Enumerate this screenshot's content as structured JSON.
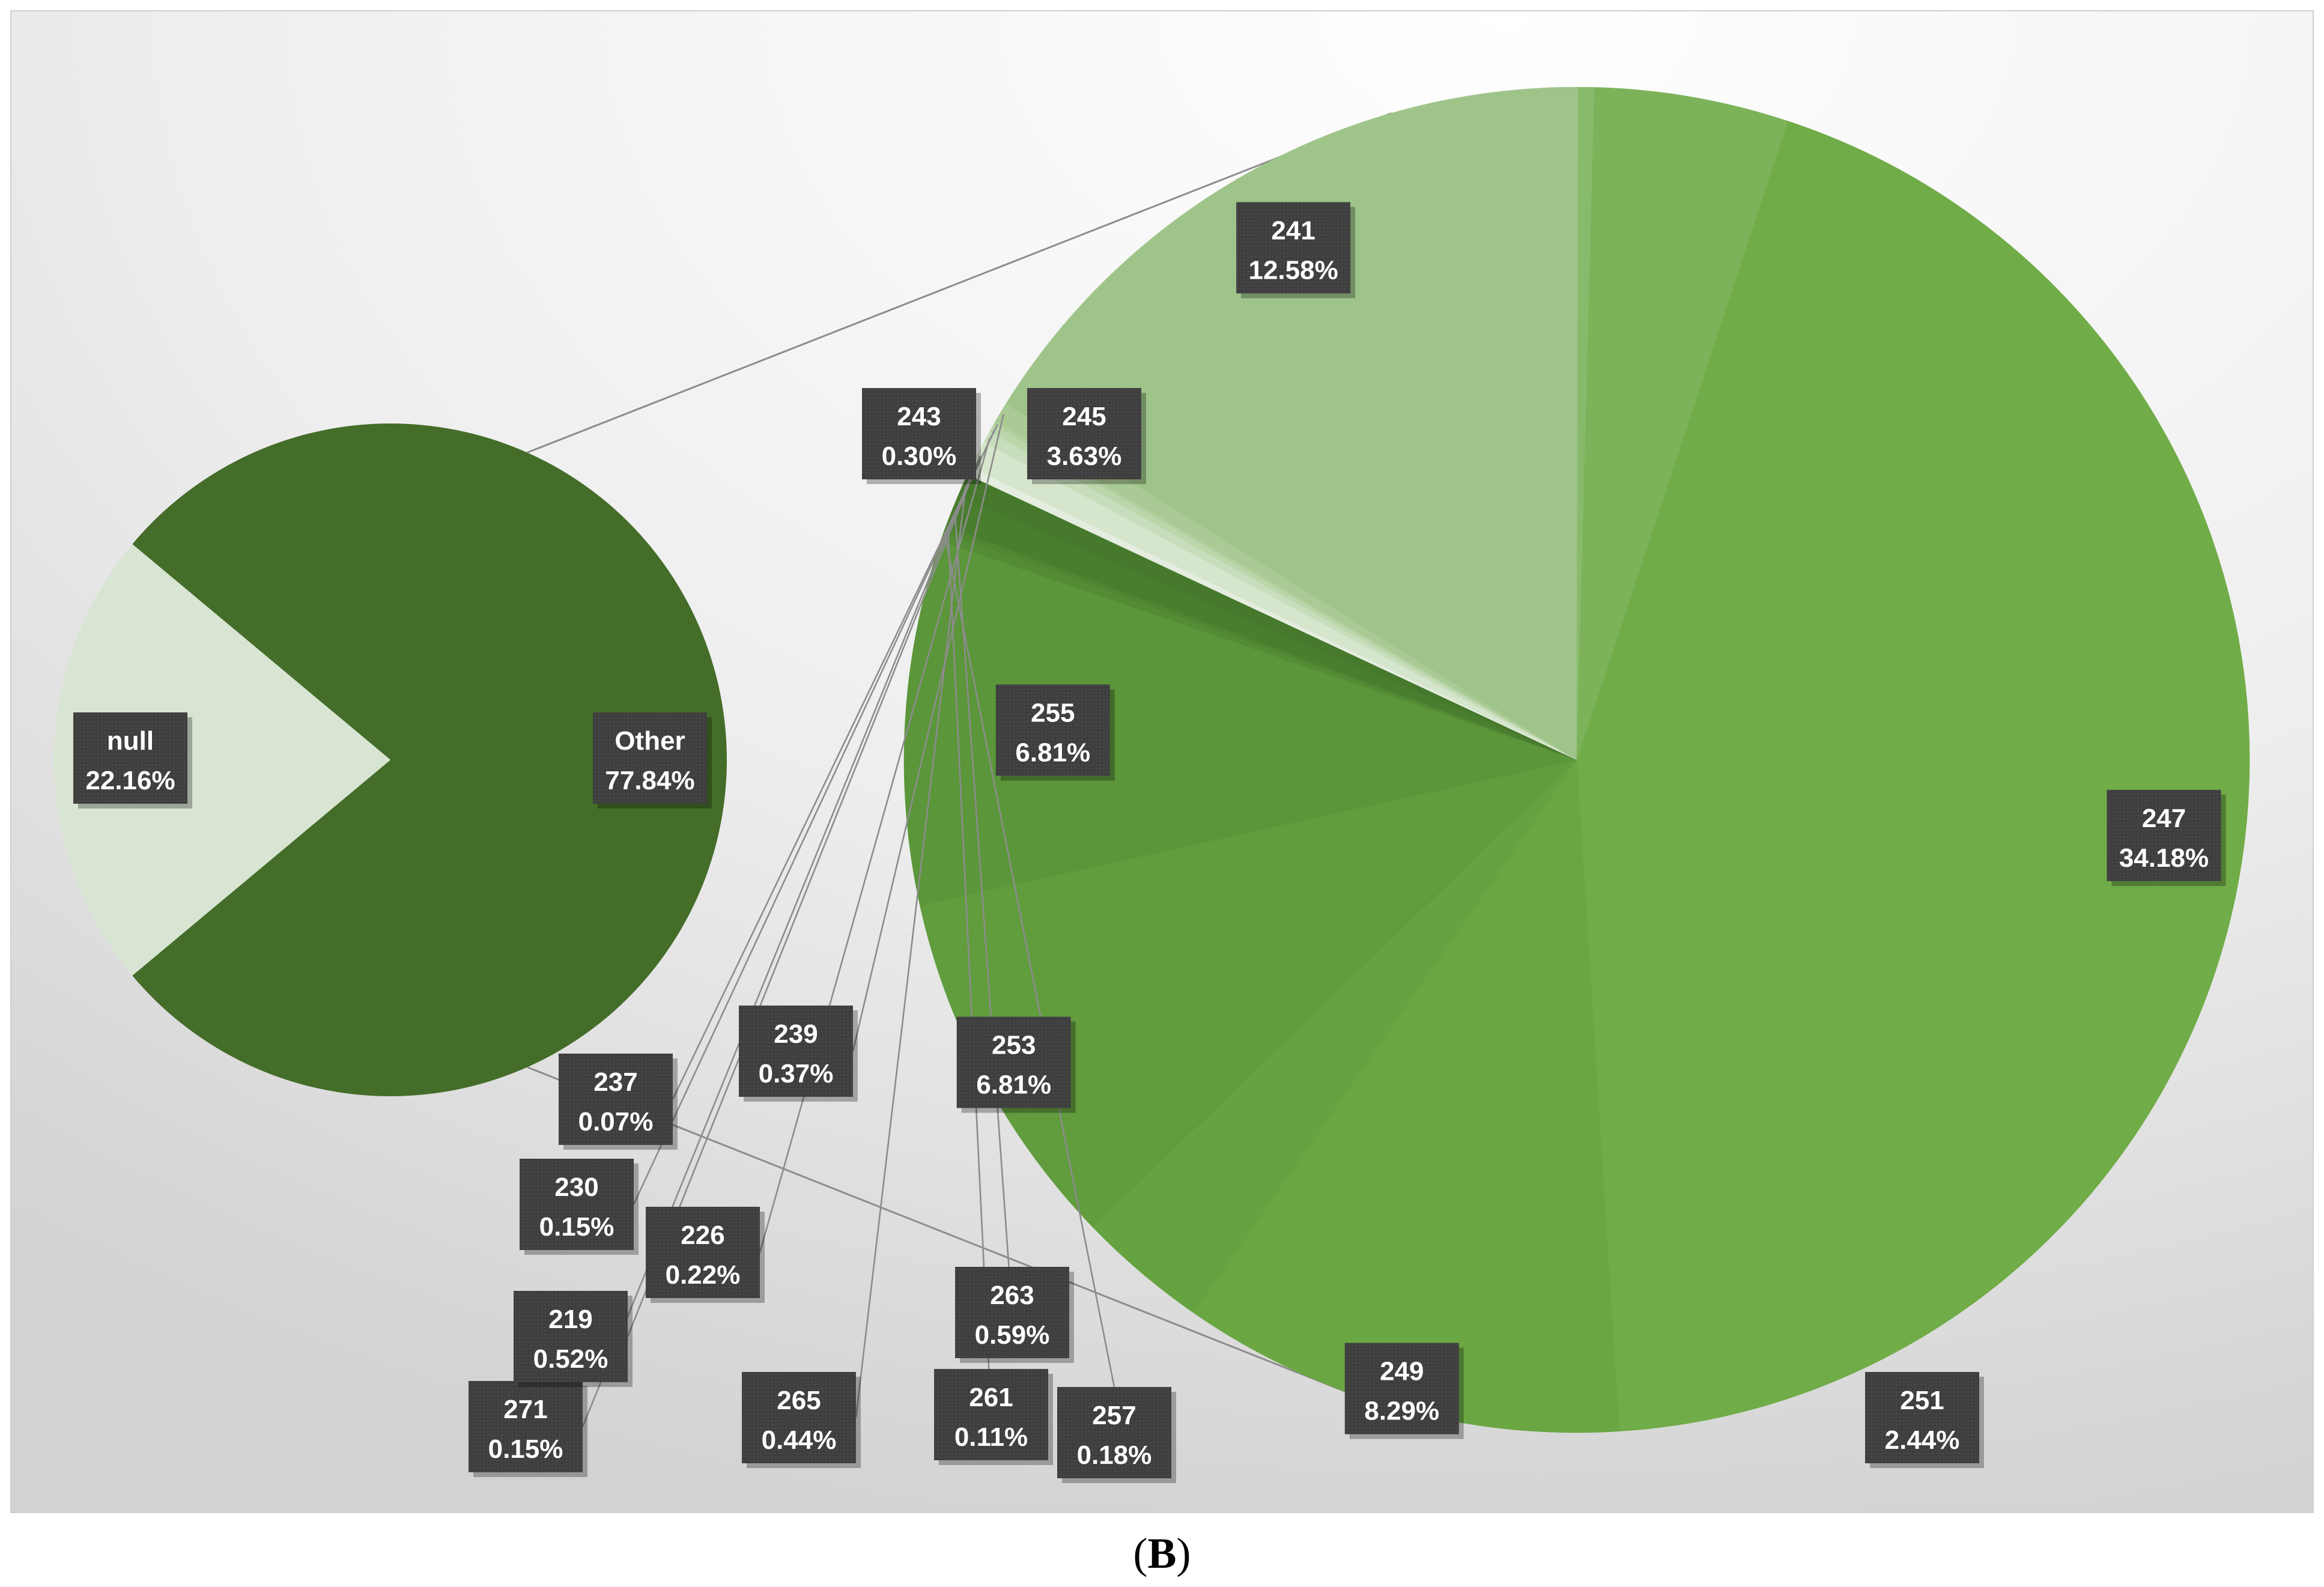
{
  "chart_data": {
    "type": "pie",
    "subtype": "pie-of-pie",
    "caption": "(B)",
    "colors": {
      "other": "#446d29",
      "null": "#d8e5d2",
      "label_bg": "#3e3e3e",
      "leader": "#8c8c8c"
    },
    "primary_pie": {
      "slices": [
        {
          "name": "null",
          "value": 22.16,
          "pct_label": "22.16%",
          "color": "#d8e5d2"
        },
        {
          "name": "Other",
          "value": 77.84,
          "pct_label": "77.84%",
          "color": "#446d29"
        }
      ]
    },
    "secondary_pie": {
      "expands": "Other",
      "slices": [
        {
          "name": "247",
          "value": 34.18,
          "pct_label": "34.18%",
          "color": "#70ac47"
        },
        {
          "name": "249",
          "value": 8.29,
          "pct_label": "8.29%",
          "color": "#6aa743"
        },
        {
          "name": "251",
          "value": 2.44,
          "pct_label": "2.44%",
          "color": "#65a240"
        },
        {
          "name": "253",
          "value": 6.81,
          "pct_label": "6.81%",
          "color": "#619c3d"
        },
        {
          "name": "255",
          "value": 6.81,
          "pct_label": "6.81%",
          "color": "#5b963a"
        },
        {
          "name": "257",
          "value": 0.18,
          "pct_label": "0.18%",
          "color": "#538c35"
        },
        {
          "name": "261",
          "value": 0.11,
          "pct_label": "0.11%",
          "color": "#4f8632"
        },
        {
          "name": "263",
          "value": 0.59,
          "pct_label": "0.59%",
          "color": "#4a7e2f"
        },
        {
          "name": "265",
          "value": 0.44,
          "pct_label": "0.44%",
          "color": "#46792c"
        },
        {
          "name": "271",
          "value": 0.15,
          "pct_label": "0.15%",
          "color": "#e4ede0"
        },
        {
          "name": "219",
          "value": 0.52,
          "pct_label": "0.52%",
          "color": "#d6e6cd"
        },
        {
          "name": "226",
          "value": 0.22,
          "pct_label": "0.22%",
          "color": "#c8ddbb"
        },
        {
          "name": "230",
          "value": 0.15,
          "pct_label": "0.15%",
          "color": "#bcd6ab"
        },
        {
          "name": "237",
          "value": 0.07,
          "pct_label": "0.07%",
          "color": "#b2d09f"
        },
        {
          "name": "239",
          "value": 0.37,
          "pct_label": "0.37%",
          "color": "#a9ca94"
        },
        {
          "name": "241",
          "value": 12.58,
          "pct_label": "12.58%",
          "color": "#9fc48a"
        },
        {
          "name": "243",
          "value": 0.3,
          "pct_label": "0.30%",
          "color": "#88ba6c"
        },
        {
          "name": "245",
          "value": 3.63,
          "pct_label": "3.63%",
          "color": "#7cb35a"
        }
      ]
    }
  }
}
